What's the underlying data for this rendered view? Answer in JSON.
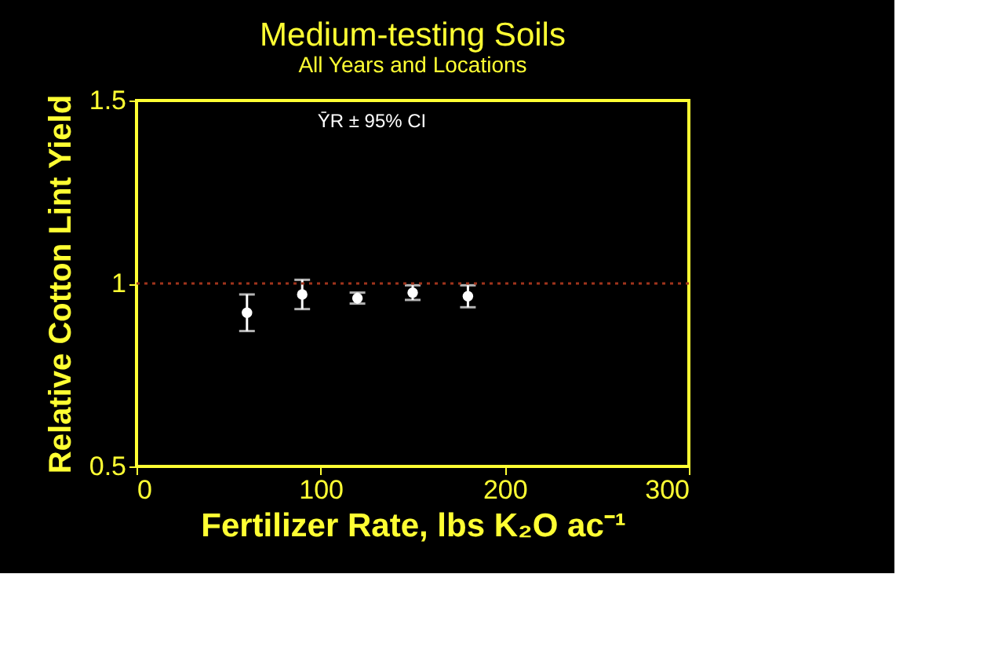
{
  "chart_data": {
    "type": "scatter",
    "title": "Medium-testing Soils",
    "subtitle": "All Years and Locations",
    "xlabel": "Fertilizer Rate, lbs K₂O ac⁻¹",
    "ylabel": "Relative Cotton Lint Yield",
    "annotations": [
      "ȲR ± 95% CI"
    ],
    "x": [
      60,
      90,
      120,
      150,
      180
    ],
    "series": [
      {
        "color": "#ffffff",
        "values": [
          0.92,
          0.97,
          0.96,
          0.975,
          0.965
        ],
        "errors": [
          0.05,
          0.04,
          0.015,
          0.02,
          0.03
        ]
      }
    ],
    "xlim": [
      0,
      300
    ],
    "xticks": [
      0,
      100,
      200,
      300
    ],
    "ylim": [
      0.5,
      1.5
    ],
    "yticks": [
      0.5,
      1,
      1.5
    ],
    "ref_lines": [
      {
        "axis": "y",
        "value": 1,
        "label": null,
        "color": "#a0341c",
        "line_style": "dotted"
      }
    ],
    "marker": "circle",
    "grid": false
  }
}
